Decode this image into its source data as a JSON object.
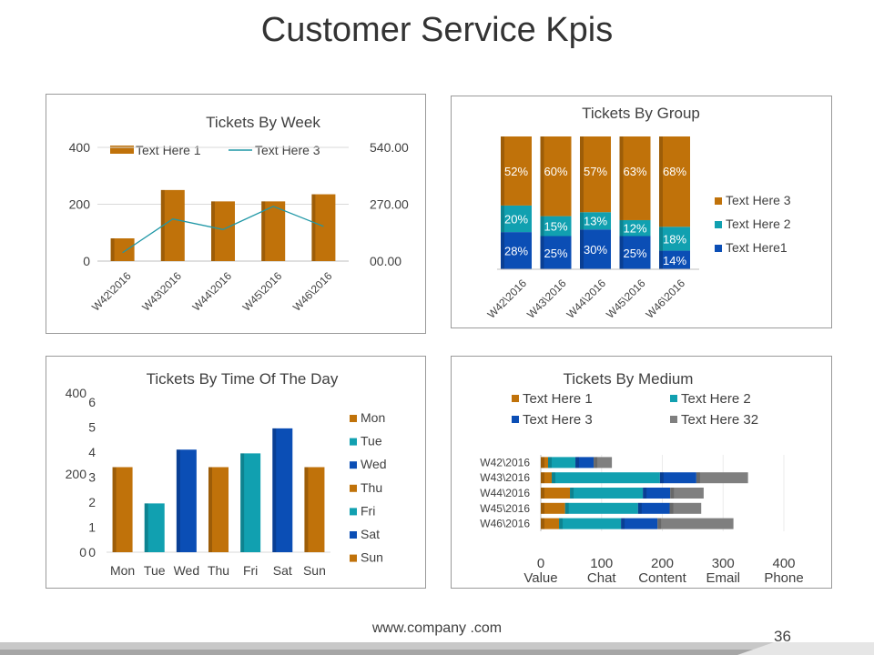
{
  "page": {
    "title": "Customer Service Kpis",
    "footer_url": "www.company .com",
    "page_number": "36"
  },
  "colors": {
    "orange": "#C0720A",
    "teal": "#11A0B0",
    "blue": "#0B4EB5",
    "gray": "#7F7F7F",
    "line": "#1F97A6",
    "grid": "#D9D9D9",
    "axis_text": "#404040"
  },
  "chart_data": [
    {
      "id": "week",
      "type": "bar",
      "title": "Tickets By Week",
      "categories": [
        "W42\\2016",
        "W43\\2016",
        "W44\\2016",
        "W45\\2016",
        "W46\\2016"
      ],
      "series": [
        {
          "name": "Text Here 1",
          "type": "bar",
          "axis": "left",
          "values": [
            80,
            250,
            210,
            210,
            235
          ]
        },
        {
          "name": "Text Here 3",
          "type": "line",
          "axis": "right",
          "values": [
            40,
            200,
            150,
            260,
            165
          ]
        }
      ],
      "left_axis": {
        "ylim": [
          0,
          400
        ],
        "ticks": [
          "0",
          "200",
          "400"
        ]
      },
      "right_axis": {
        "ylim": [
          0,
          540
        ],
        "ticks": [
          "00.00",
          "270.00",
          "540.00"
        ]
      },
      "legend": "top"
    },
    {
      "id": "group",
      "type": "stacked_bar",
      "title": "Tickets By Group",
      "categories": [
        "W42\\2016",
        "W43\\2016",
        "W44\\2016",
        "W45\\2016",
        "W46\\2016"
      ],
      "series": [
        {
          "name": "Text Here1",
          "values": [
            28,
            25,
            30,
            25,
            14
          ],
          "labels": [
            "28%",
            "25%",
            "30%",
            "25%",
            "14%"
          ]
        },
        {
          "name": "Text Here 2",
          "values": [
            20,
            15,
            13,
            12,
            18
          ],
          "labels": [
            "20%",
            "15%",
            "13%",
            "12%",
            "18%"
          ]
        },
        {
          "name": "Text Here 3",
          "values": [
            52,
            60,
            57,
            63,
            68
          ],
          "labels": [
            "52%",
            "60%",
            "57%",
            "63%",
            "68%"
          ]
        }
      ],
      "legend": "right"
    },
    {
      "id": "day",
      "type": "bar",
      "title": "Tickets By Time Of The Day",
      "categories": [
        "Mon",
        "Tue",
        "Wed",
        "Thu",
        "Fri",
        "Sat",
        "Sun"
      ],
      "values": [
        3.4,
        1.95,
        4.1,
        3.4,
        3.95,
        4.95,
        3.4
      ],
      "series_colors": [
        "orange",
        "teal",
        "blue",
        "orange",
        "teal",
        "blue",
        "orange"
      ],
      "ylim": [
        0,
        6
      ],
      "ticks": [
        "0",
        "1",
        "2",
        "3",
        "4",
        "5",
        "6"
      ],
      "secondary_ticks": [
        "0",
        "200",
        "400"
      ],
      "legend_entries": [
        "Mon",
        "Tue",
        "Wed",
        "Thu",
        "Fri",
        "Sat",
        "Sun"
      ],
      "legend": "right"
    },
    {
      "id": "medium",
      "type": "stacked_barh",
      "title": "Tickets By Medium",
      "categories": [
        "W42\\2016",
        "W43\\2016",
        "W44\\2016",
        "W45\\2016",
        "W46\\2016"
      ],
      "series": [
        {
          "name": "Text Here 1",
          "color": "orange",
          "values": [
            12,
            18,
            48,
            40,
            30
          ]
        },
        {
          "name": "Text Here 2",
          "color": "teal",
          "values": [
            45,
            178,
            120,
            120,
            102
          ]
        },
        {
          "name": "Text Here 3",
          "color": "blue",
          "values": [
            30,
            60,
            45,
            52,
            60
          ]
        },
        {
          "name": "Text Here 32",
          "color": "gray",
          "values": [
            30,
            85,
            55,
            52,
            125
          ]
        }
      ],
      "xlim": [
        0,
        400
      ],
      "x_ticks": [
        "0",
        "100",
        "200",
        "300",
        "400"
      ],
      "x_labels": [
        "Value",
        "Chat",
        "Content",
        "Email",
        "Phone"
      ],
      "legend": "top"
    }
  ]
}
